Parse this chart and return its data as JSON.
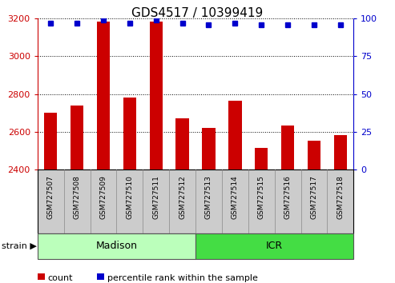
{
  "title": "GDS4517 / 10399419",
  "samples": [
    "GSM727507",
    "GSM727508",
    "GSM727509",
    "GSM727510",
    "GSM727511",
    "GSM727512",
    "GSM727513",
    "GSM727514",
    "GSM727515",
    "GSM727516",
    "GSM727517",
    "GSM727518"
  ],
  "counts": [
    2700,
    2740,
    3185,
    2780,
    3185,
    2670,
    2620,
    2765,
    2515,
    2635,
    2555,
    2585
  ],
  "percentiles": [
    97,
    97,
    99,
    97,
    99,
    97,
    96,
    97,
    96,
    96,
    96,
    96
  ],
  "ylim_left": [
    2400,
    3200
  ],
  "ylim_right": [
    0,
    100
  ],
  "yticks_left": [
    2400,
    2600,
    2800,
    3000,
    3200
  ],
  "yticks_right": [
    0,
    25,
    50,
    75,
    100
  ],
  "groups": [
    {
      "name": "Madison",
      "indices": [
        0,
        1,
        2,
        3,
        4,
        5
      ],
      "color": "#BBFFBB"
    },
    {
      "name": "ICR",
      "indices": [
        6,
        7,
        8,
        9,
        10,
        11
      ],
      "color": "#44DD44"
    }
  ],
  "bar_color": "#CC0000",
  "dot_color": "#0000CC",
  "bar_width": 0.5,
  "grid_color": "#000000",
  "background_plot": "#FFFFFF",
  "background_tick": "#CCCCCC",
  "left_axis_color": "#CC0000",
  "right_axis_color": "#0000CC",
  "strain_label": "strain",
  "legend_count_label": "count",
  "legend_percentile_label": "percentile rank within the sample",
  "title_fontsize": 11,
  "tick_fontsize": 8,
  "sample_fontsize": 6.5,
  "group_fontsize": 9,
  "legend_fontsize": 8
}
